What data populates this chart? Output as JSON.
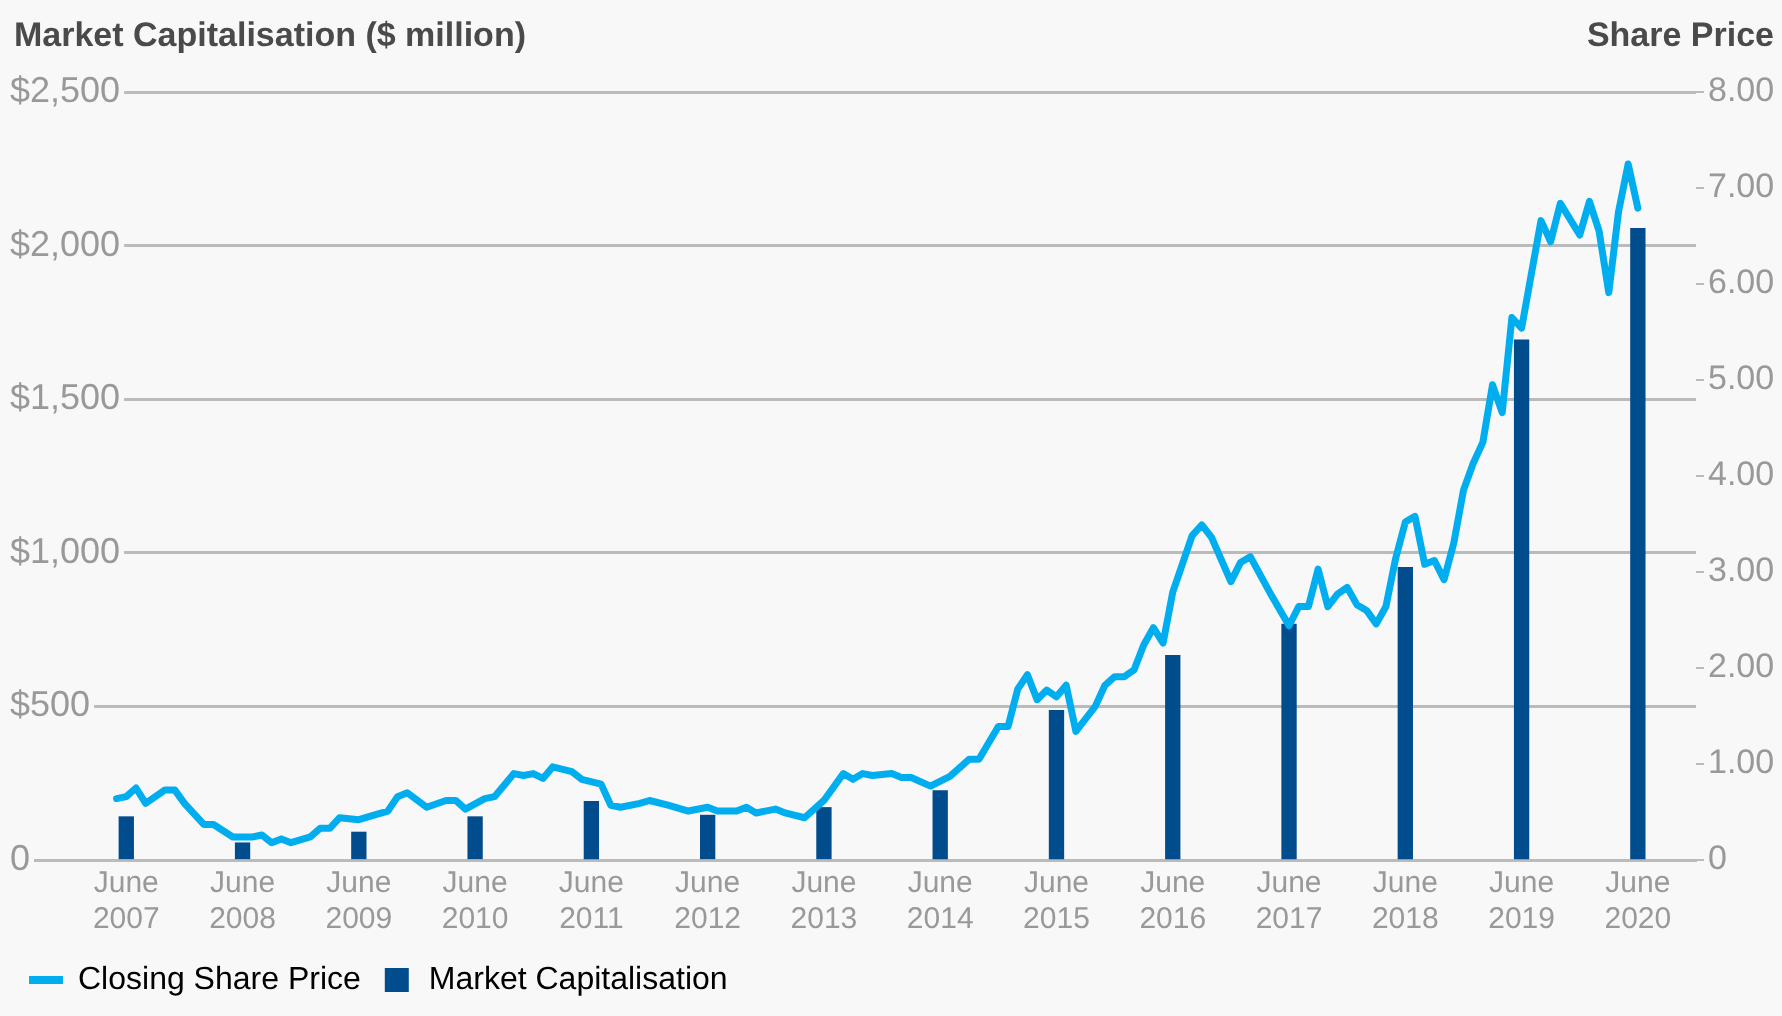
{
  "chart_data": {
    "type": "line",
    "ylabel": "Market Capitalisation ($ million)",
    "y2label": "Share Price",
    "xlim": [
      "2006-06",
      "2020-12"
    ],
    "xticks": [
      {
        "value": "2007-06",
        "label": "June 2007"
      },
      {
        "value": "2008-06",
        "label": "June 2008"
      },
      {
        "value": "2009-06",
        "label": "June 2009"
      },
      {
        "value": "2010-06",
        "label": "June 2010"
      },
      {
        "value": "2011-06",
        "label": "June 2011"
      },
      {
        "value": "2012-06",
        "label": "June 2012"
      },
      {
        "value": "2013-06",
        "label": "June 2013"
      },
      {
        "value": "2014-06",
        "label": "June 2014"
      },
      {
        "value": "2015-06",
        "label": "June 2015"
      },
      {
        "value": "2016-06",
        "label": "June 2016"
      },
      {
        "value": "2017-06",
        "label": "June 2017"
      },
      {
        "value": "2018-06",
        "label": "June 2018"
      },
      {
        "value": "2019-06",
        "label": "June 2019"
      },
      {
        "value": "2020-06",
        "label": "June 2020"
      }
    ],
    "ylim": [
      0,
      2500
    ],
    "yticks": [
      0,
      {
        "value": 500,
        "label": "$500"
      },
      {
        "value": 1000,
        "label": "$1,000"
      },
      {
        "value": 1500,
        "label": "$1,500"
      },
      {
        "value": 2000,
        "label": "$2,000"
      },
      {
        "value": 2500,
        "label": "$2,500"
      }
    ],
    "y2lim": [
      0,
      8
    ],
    "y2ticks": [
      0,
      {
        "value": 1,
        "label": "1.00"
      },
      {
        "value": 2,
        "label": "2.00"
      },
      {
        "value": 3,
        "label": "3.00"
      },
      {
        "value": 4,
        "label": "4.00"
      },
      {
        "value": 5,
        "label": "5.00"
      },
      {
        "value": 6,
        "label": "6.00"
      },
      {
        "value": 7,
        "label": "7.00"
      },
      {
        "value": 8,
        "label": "8.00"
      }
    ],
    "grid": "y",
    "legend": "bottom left",
    "marker": "none",
    "series": [
      {
        "name": "Closing Share Price",
        "axis": "y2",
        "color": "#00aeef",
        "x": [
          "2007-05",
          "2007-06",
          "2007-07",
          "2007-08",
          "2007-10",
          "2007-11",
          "2007-12",
          "2008-02",
          "2008-03",
          "2008-05",
          "2008-07",
          "2008-08",
          "2008-09",
          "2008-10",
          "2008-11",
          "2009-01",
          "2009-02",
          "2009-03",
          "2009-04",
          "2009-06",
          "2009-08",
          "2009-09",
          "2009-10",
          "2009-11",
          "2010-01",
          "2010-03",
          "2010-04",
          "2010-05",
          "2010-07",
          "2010-08",
          "2010-10",
          "2010-11",
          "2010-12",
          "2011-01",
          "2011-02",
          "2011-04",
          "2011-05",
          "2011-07",
          "2011-08",
          "2011-09",
          "2011-11",
          "2011-12",
          "2012-02",
          "2012-04",
          "2012-06",
          "2012-07",
          "2012-09",
          "2012-10",
          "2012-11",
          "2013-01",
          "2013-02",
          "2013-04",
          "2013-06",
          "2013-08",
          "2013-09",
          "2013-10",
          "2013-11",
          "2014-01",
          "2014-02",
          "2014-03",
          "2014-05",
          "2014-07",
          "2014-09",
          "2014-10",
          "2014-12",
          "2015-01",
          "2015-02",
          "2015-03",
          "2015-04",
          "2015-05",
          "2015-06",
          "2015-07",
          "2015-08",
          "2015-10",
          "2015-11",
          "2015-12",
          "2016-01",
          "2016-02",
          "2016-03",
          "2016-04",
          "2016-05",
          "2016-06",
          "2016-08",
          "2016-09",
          "2016-10",
          "2016-12",
          "2017-01",
          "2017-02",
          "2017-04",
          "2017-06",
          "2017-07",
          "2017-08",
          "2017-09",
          "2017-10",
          "2017-11",
          "2017-12",
          "2018-01",
          "2018-02",
          "2018-03",
          "2018-04",
          "2018-05",
          "2018-06",
          "2018-07",
          "2018-08",
          "2018-09",
          "2018-10",
          "2018-11",
          "2018-12",
          "2019-01",
          "2019-02",
          "2019-03",
          "2019-04",
          "2019-05",
          "2019-06",
          "2019-08",
          "2019-09",
          "2019-10",
          "2019-12",
          "2020-01",
          "2020-02",
          "2020-03",
          "2020-04",
          "2020-05",
          "2020-06"
        ],
        "values": [
          0.64,
          0.66,
          0.75,
          0.59,
          0.73,
          0.73,
          0.59,
          0.37,
          0.37,
          0.24,
          0.24,
          0.26,
          0.18,
          0.22,
          0.18,
          0.24,
          0.33,
          0.33,
          0.44,
          0.42,
          0.48,
          0.51,
          0.66,
          0.7,
          0.55,
          0.62,
          0.62,
          0.53,
          0.64,
          0.66,
          0.9,
          0.88,
          0.9,
          0.85,
          0.97,
          0.92,
          0.84,
          0.79,
          0.57,
          0.55,
          0.59,
          0.62,
          0.57,
          0.51,
          0.55,
          0.51,
          0.51,
          0.55,
          0.49,
          0.53,
          0.49,
          0.44,
          0.62,
          0.9,
          0.84,
          0.9,
          0.88,
          0.9,
          0.86,
          0.86,
          0.77,
          0.87,
          1.05,
          1.05,
          1.39,
          1.39,
          1.78,
          1.93,
          1.67,
          1.77,
          1.7,
          1.82,
          1.34,
          1.6,
          1.82,
          1.91,
          1.91,
          1.98,
          2.24,
          2.42,
          2.26,
          2.79,
          3.38,
          3.49,
          3.36,
          2.9,
          3.1,
          3.16,
          2.79,
          2.44,
          2.64,
          2.64,
          3.03,
          2.64,
          2.77,
          2.84,
          2.66,
          2.6,
          2.46,
          2.64,
          3.14,
          3.52,
          3.58,
          3.08,
          3.12,
          2.92,
          3.3,
          3.85,
          4.13,
          4.35,
          4.95,
          4.66,
          5.65,
          5.54,
          6.66,
          6.44,
          6.84,
          6.51,
          6.86,
          6.55,
          5.91,
          6.75,
          7.25,
          6.79
        ]
      },
      {
        "name": "Market Capitalisation",
        "type": "bar",
        "color": "#004c8c",
        "x": [
          "2007-06",
          "2008-06",
          "2009-06",
          "2010-06",
          "2011-06",
          "2012-06",
          "2013-06",
          "2014-06",
          "2015-06",
          "2016-06",
          "2017-06",
          "2018-06",
          "2019-06",
          "2020-06"
        ],
        "values": [
          140,
          55,
          90,
          140,
          190,
          145,
          170,
          225,
          486,
          665,
          767,
          952,
          1692,
          2055
        ]
      }
    ]
  }
}
